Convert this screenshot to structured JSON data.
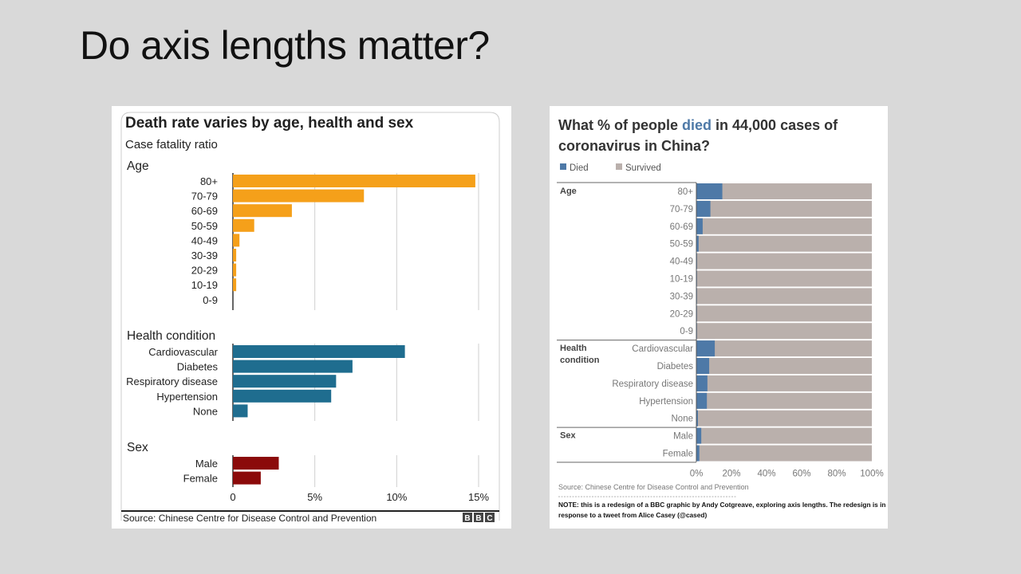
{
  "slide": {
    "title": "Do axis lengths matter?"
  },
  "left_chart": {
    "title": "Death rate varies by age, health and sex",
    "subtitle": "Case fatality ratio",
    "source": "Source: Chinese Centre for Disease Control and Prevention",
    "logo": "BBC",
    "colors": {
      "Age": "#f5a01a",
      "Health condition": "#1f6d8f",
      "Sex": "#8b0a0a"
    }
  },
  "right_chart": {
    "title_parts": [
      "What % of people ",
      "died",
      " in 44,000 cases of"
    ],
    "title_line2": "coronavirus in China?",
    "source": "Source: Chinese Centre for Disease Control and Prevention",
    "note_line1": "NOTE: this is a redesign of a BBC graphic by Andy Cotgreave, exploring axis lengths. The redesign is in",
    "note_line2": "response to a tweet from Alice Casey (@cased)",
    "legend": [
      "Died",
      "Survived"
    ],
    "colors": {
      "died": "#4e79a7",
      "survived": "#bab0ac"
    },
    "group_labels": {
      "Age": "Age",
      "Health line1": "Health",
      "Health line2": "condition",
      "Sex": "Sex"
    }
  },
  "chart_data": [
    {
      "type": "bar",
      "orientation": "horizontal",
      "title": "Death rate varies by age, health and sex",
      "subtitle": "Case fatality ratio",
      "xlim": [
        0,
        15
      ],
      "x_ticks": [
        "0",
        "5%",
        "10%",
        "15%"
      ],
      "groups": [
        {
          "name": "Age",
          "categories": [
            "80+",
            "70-79",
            "60-69",
            "50-59",
            "40-49",
            "30-39",
            "20-29",
            "10-19",
            "0-9"
          ],
          "values": [
            14.8,
            8.0,
            3.6,
            1.3,
            0.4,
            0.2,
            0.2,
            0.2,
            0.0
          ]
        },
        {
          "name": "Health condition",
          "categories": [
            "Cardiovascular",
            "Diabetes",
            "Respiratory disease",
            "Hypertension",
            "None"
          ],
          "values": [
            10.5,
            7.3,
            6.3,
            6.0,
            0.9
          ]
        },
        {
          "name": "Sex",
          "categories": [
            "Male",
            "Female"
          ],
          "values": [
            2.8,
            1.7
          ]
        }
      ]
    },
    {
      "type": "bar",
      "orientation": "horizontal",
      "stacked": true,
      "title": "What % of people died in 44,000 cases of coronavirus in China?",
      "xlim": [
        0,
        100
      ],
      "x_ticks": [
        "0%",
        "20%",
        "40%",
        "60%",
        "80%",
        "100%"
      ],
      "series_names": [
        "Died",
        "Survived"
      ],
      "groups": [
        {
          "name": "Age",
          "categories": [
            "80+",
            "70-79",
            "60-69",
            "50-59",
            "40-49",
            "10-19",
            "30-39",
            "20-29",
            "0-9"
          ],
          "died": [
            14.8,
            8.0,
            3.6,
            1.3,
            0.4,
            0.2,
            0.2,
            0.2,
            0.0
          ]
        },
        {
          "name": "Health condition",
          "categories": [
            "Cardiovascular",
            "Diabetes",
            "Respiratory disease",
            "Hypertension",
            "None"
          ],
          "died": [
            10.5,
            7.3,
            6.3,
            6.0,
            0.9
          ]
        },
        {
          "name": "Sex",
          "categories": [
            "Male",
            "Female"
          ],
          "died": [
            2.8,
            1.7
          ]
        }
      ]
    }
  ]
}
